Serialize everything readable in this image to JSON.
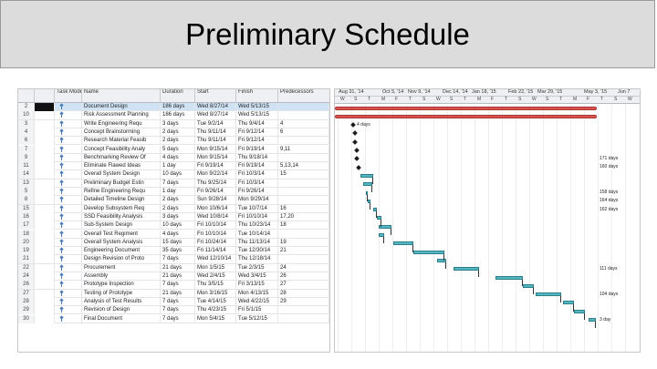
{
  "slide": {
    "title": "Preliminary Schedule"
  },
  "table": {
    "columns": [
      "",
      "",
      "Task Mode",
      "Name",
      "Duration",
      "Start",
      "Finish",
      "Predecessors"
    ],
    "rows": [
      {
        "id": "2",
        "name": "Document Design",
        "duration": "186 days",
        "start": "Wed 8/27/14",
        "finish": "Wed 5/13/15",
        "pred": ""
      },
      {
        "id": "10",
        "name": "Risk Assessment Planning",
        "duration": "186 days",
        "start": "Wed 8/27/14",
        "finish": "Wed 5/13/15",
        "pred": ""
      },
      {
        "id": "3",
        "name": "Write Engineering Requ",
        "duration": "3 days",
        "start": "Tue 9/2/14",
        "finish": "Thu 9/4/14",
        "pred": "4"
      },
      {
        "id": "4",
        "name": "Concept Brainstorming",
        "duration": "2 days",
        "start": "Thu 9/11/14",
        "finish": "Fri 9/12/14",
        "pred": "6"
      },
      {
        "id": "6",
        "name": "Research Material Feasib",
        "duration": "2 days",
        "start": "Thu 9/11/14",
        "finish": "Fri 9/12/14",
        "pred": ""
      },
      {
        "id": "7",
        "name": "Concept Feasibility Analy",
        "duration": "5 days",
        "start": "Mon 9/15/14",
        "finish": "Fri 9/19/14",
        "pred": "9,11"
      },
      {
        "id": "9",
        "name": "Benchmarking Review Of",
        "duration": "4 days",
        "start": "Mon 9/15/14",
        "finish": "Thu 9/18/14",
        "pred": ""
      },
      {
        "id": "11",
        "name": "Eliminate Flawed Ideas",
        "duration": "1 day",
        "start": "Fri 9/19/14",
        "finish": "Fri 9/19/14",
        "pred": "5,13,14"
      },
      {
        "id": "14",
        "name": "Overall System Design",
        "duration": "10 days",
        "start": "Mon 9/22/14",
        "finish": "Fri 10/3/14",
        "pred": "15"
      },
      {
        "id": "13",
        "name": "Preliminary Budget Estin",
        "duration": "7 days",
        "start": "Thu 9/25/14",
        "finish": "Fri 10/3/14",
        "pred": ""
      },
      {
        "id": "5",
        "name": "Refine Engineering Requ",
        "duration": "1 day",
        "start": "Fri 9/26/14",
        "finish": "Fri 9/26/14",
        "pred": ""
      },
      {
        "id": "8",
        "name": "Detailed Timeline Design",
        "duration": "2 days",
        "start": "Sun 9/28/14",
        "finish": "Mon 9/29/14",
        "pred": ""
      },
      {
        "id": "15",
        "name": "Develop Subsystem Req",
        "duration": "2 days",
        "start": "Mon 10/6/14",
        "finish": "Tue 10/7/14",
        "pred": "16"
      },
      {
        "id": "16",
        "name": "SSD Feasibility Analysis",
        "duration": "3 days",
        "start": "Wed 10/8/14",
        "finish": "Fri 10/10/14",
        "pred": "17,20"
      },
      {
        "id": "17",
        "name": "Sub-System Design",
        "duration": "10 days",
        "start": "Fri 10/10/14",
        "finish": "Thu 10/23/14",
        "pred": "18"
      },
      {
        "id": "18",
        "name": "Overall Test Regiment",
        "duration": "4 days",
        "start": "Fri 10/10/14",
        "finish": "Tue 10/14/14",
        "pred": ""
      },
      {
        "id": "20",
        "name": "Overall System Analysis",
        "duration": "15 days",
        "start": "Fri 10/24/14",
        "finish": "Thu 11/13/14",
        "pred": "19"
      },
      {
        "id": "19",
        "name": "Engineering Document",
        "duration": "35 days",
        "start": "Fri 11/14/14",
        "finish": "Tue 12/30/14",
        "pred": "21"
      },
      {
        "id": "21",
        "name": "Design Revision of Proto",
        "duration": "7 days",
        "start": "Wed 12/10/14",
        "finish": "Thu 12/18/14",
        "pred": ""
      },
      {
        "id": "22",
        "name": "Procurement",
        "duration": "21 days",
        "start": "Mon 1/5/15",
        "finish": "Tue 2/3/15",
        "pred": "24"
      },
      {
        "id": "24",
        "name": "Assembly",
        "duration": "21 days",
        "start": "Wed 2/4/15",
        "finish": "Wed 3/4/15",
        "pred": "26"
      },
      {
        "id": "26",
        "name": "Prototype Inspection",
        "duration": "7 days",
        "start": "Thu 3/5/15",
        "finish": "Fri 3/13/15",
        "pred": "27"
      },
      {
        "id": "27",
        "name": "Testing of Prototype",
        "duration": "21 days",
        "start": "Mon 3/16/15",
        "finish": "Mon 4/13/15",
        "pred": "28"
      },
      {
        "id": "28",
        "name": "Analysis of Test Results",
        "duration": "7 days",
        "start": "Tue 4/14/15",
        "finish": "Wed 4/22/15",
        "pred": "29"
      },
      {
        "id": "29",
        "name": "Revision of Design",
        "duration": "7 days",
        "start": "Thu 4/23/15",
        "finish": "Fri 5/1/15",
        "pred": ""
      },
      {
        "id": "30",
        "name": "Final Document",
        "duration": "7 days",
        "start": "Mon 5/4/15",
        "finish": "Tue 5/12/15",
        "pred": ""
      }
    ]
  },
  "gantt": {
    "months": [
      "Aug 31, '14",
      "Oct 5, '14",
      "Nov 9, '14",
      "Dec 14, '14",
      "Jan 18, '15",
      "Feb 22, '15",
      "Mar 29, '15",
      "May 3, '15",
      "Jun 7"
    ],
    "days": [
      "W",
      "S",
      "T",
      "M",
      "F",
      "T",
      "S",
      "W",
      "S",
      "T",
      "M",
      "F",
      "T",
      "S",
      "W",
      "S",
      "T",
      "M",
      "F",
      "T",
      "S",
      "W"
    ],
    "labels": [
      "4 days",
      "171 days",
      "160 days",
      "158 days",
      "164 days",
      "162 days",
      "111 days",
      "104 days",
      "3 day"
    ],
    "colors": {
      "summary_bar": "#d9534f",
      "task_bar": "#54b8c4"
    }
  }
}
